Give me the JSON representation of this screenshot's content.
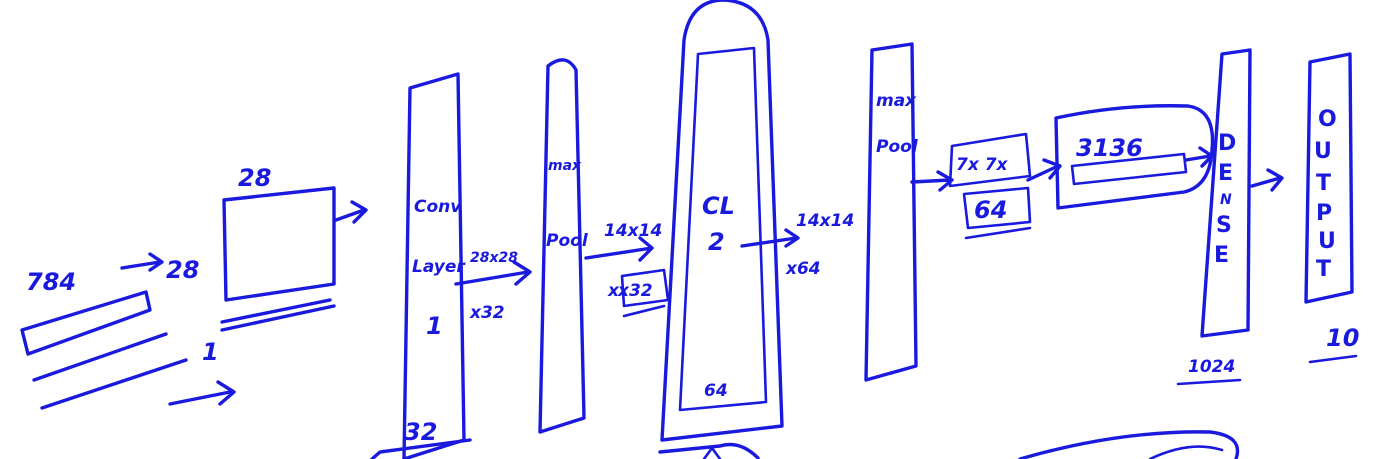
{
  "colors": {
    "ink": "#1a1adf",
    "background": "#ffffff"
  },
  "labels": {
    "input_size": "784",
    "image_side": "28",
    "image_top": "28",
    "channel_one": "1",
    "conv_word": "Conv",
    "layer_word": "Layer",
    "layer_num": "1",
    "dims_28": "28x28",
    "times_32": "x32",
    "filters_32": "32",
    "max_1": "max",
    "pool_1": "Pool",
    "dims_14_a": "14x14",
    "depth_32": "x32",
    "cl_word": "CL",
    "cl_num": "2",
    "filters_64": "64",
    "dims_14_b": "14x14",
    "times_64": "x64",
    "max_2": "max",
    "pool_2": "Pool",
    "dims_7": "7x 7x",
    "depth_64": "64",
    "flat_3136": "3136",
    "dense_letters": [
      "D",
      "E",
      "N",
      "S",
      "E"
    ],
    "dense_units": "1024",
    "output_letters": [
      "O",
      "U",
      "T",
      "P",
      "U",
      "T"
    ],
    "output_units": "10"
  }
}
